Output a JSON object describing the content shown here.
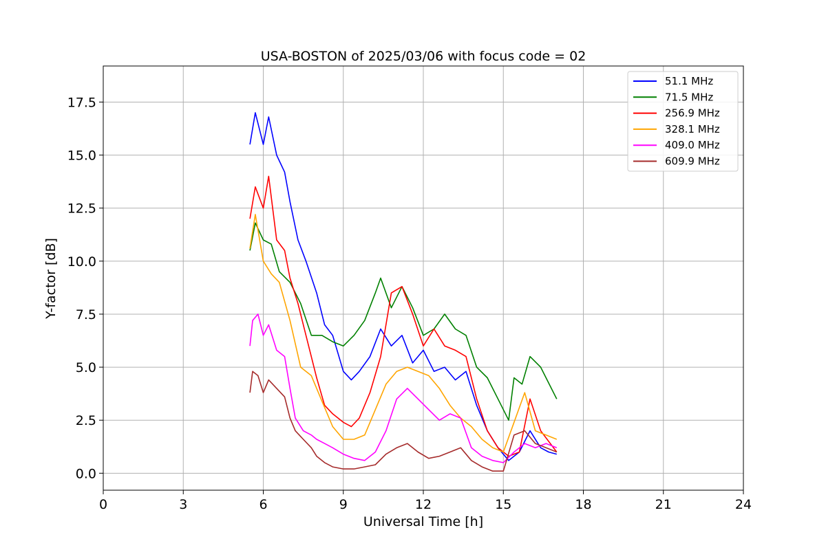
{
  "chart_data": {
    "type": "line",
    "title": "USA-BOSTON of 2025/03/06 with focus code = 02",
    "xlabel": "Universal Time [h]",
    "ylabel": "Y-factor [dB]",
    "xlim": [
      0,
      24
    ],
    "ylim": [
      -0.8,
      19.2
    ],
    "xticks": [
      0,
      3,
      6,
      9,
      12,
      15,
      18,
      21,
      24
    ],
    "xtick_labels": [
      "0",
      "3",
      "6",
      "9",
      "12",
      "15",
      "18",
      "21",
      "24"
    ],
    "yticks": [
      0,
      2.5,
      5,
      7.5,
      10,
      12.5,
      15,
      17.5
    ],
    "ytick_labels": [
      "0.0",
      "2.5",
      "5.0",
      "7.5",
      "10.0",
      "12.5",
      "15.0",
      "17.5"
    ],
    "grid": true,
    "legend_position": "top-right",
    "series": [
      {
        "name": " 51.1 MHz",
        "color": "#0000ff",
        "x": [
          5.5,
          5.7,
          6.0,
          6.2,
          6.5,
          6.8,
          7.0,
          7.3,
          7.6,
          8.0,
          8.3,
          8.6,
          9.0,
          9.3,
          9.6,
          10.0,
          10.4,
          10.8,
          11.2,
          11.6,
          12.0,
          12.4,
          12.8,
          13.2,
          13.6,
          14.0,
          14.4,
          14.8,
          15.2,
          15.6,
          16.0,
          16.4,
          16.7,
          17.0
        ],
        "y": [
          15.5,
          17.0,
          15.5,
          16.8,
          15.0,
          14.2,
          12.8,
          11.0,
          10.0,
          8.5,
          7.0,
          6.5,
          4.8,
          4.4,
          4.8,
          5.5,
          6.8,
          6.0,
          6.5,
          5.2,
          5.8,
          4.8,
          5.0,
          4.4,
          4.8,
          3.2,
          2.0,
          1.2,
          0.6,
          1.0,
          2.0,
          1.2,
          1.0,
          0.9
        ]
      },
      {
        "name": " 71.5 MHz",
        "color": "#008000",
        "x": [
          5.5,
          5.7,
          6.0,
          6.3,
          6.6,
          7.0,
          7.4,
          7.8,
          8.2,
          8.6,
          9.0,
          9.4,
          9.8,
          10.2,
          10.4,
          10.8,
          11.2,
          11.6,
          12.0,
          12.4,
          12.8,
          13.2,
          13.6,
          14.0,
          14.4,
          14.8,
          15.2,
          15.4,
          15.7,
          16.0,
          16.4,
          16.8,
          17.0
        ],
        "y": [
          10.5,
          11.8,
          11.0,
          10.8,
          9.5,
          9.0,
          8.0,
          6.5,
          6.5,
          6.2,
          6.0,
          6.5,
          7.2,
          8.5,
          9.2,
          7.8,
          8.8,
          7.8,
          6.5,
          6.8,
          7.5,
          6.8,
          6.5,
          5.0,
          4.5,
          3.5,
          2.5,
          4.5,
          4.2,
          5.5,
          5.0,
          4.0,
          3.5
        ]
      },
      {
        "name": " 256.9 MHz",
        "color": "#ff0000",
        "x": [
          5.5,
          5.7,
          6.0,
          6.2,
          6.5,
          6.8,
          7.0,
          7.3,
          7.6,
          8.0,
          8.3,
          8.6,
          9.0,
          9.3,
          9.6,
          10.0,
          10.4,
          10.8,
          11.2,
          11.6,
          12.0,
          12.4,
          12.8,
          13.2,
          13.6,
          14.0,
          14.4,
          14.8,
          15.2,
          15.6,
          16.0,
          16.4,
          16.7,
          17.0
        ],
        "y": [
          12.0,
          13.5,
          12.5,
          14.0,
          11.0,
          10.5,
          9.2,
          8.0,
          6.5,
          4.5,
          3.2,
          2.8,
          2.4,
          2.2,
          2.6,
          3.8,
          5.5,
          8.5,
          8.8,
          7.5,
          6.0,
          6.8,
          6.0,
          5.8,
          5.5,
          3.5,
          2.0,
          1.2,
          0.8,
          1.0,
          3.5,
          2.0,
          1.5,
          1.0
        ]
      },
      {
        "name": " 328.1 MHz",
        "color": "#ffa500",
        "x": [
          5.5,
          5.7,
          6.0,
          6.3,
          6.6,
          7.0,
          7.4,
          7.8,
          8.2,
          8.6,
          9.0,
          9.4,
          9.8,
          10.2,
          10.6,
          11.0,
          11.4,
          11.8,
          12.2,
          12.6,
          13.0,
          13.4,
          13.8,
          14.2,
          14.6,
          15.0,
          15.4,
          15.8,
          16.2,
          16.6,
          17.0
        ],
        "y": [
          10.6,
          12.2,
          10.0,
          9.4,
          9.0,
          7.2,
          5.0,
          4.6,
          3.4,
          2.2,
          1.6,
          1.6,
          1.8,
          3.0,
          4.2,
          4.8,
          5.0,
          4.8,
          4.6,
          4.0,
          3.2,
          2.6,
          2.2,
          1.6,
          1.2,
          1.0,
          2.4,
          3.8,
          2.0,
          1.8,
          1.6
        ]
      },
      {
        "name": " 409.0 MHz",
        "color": "#ff00ff",
        "x": [
          5.5,
          5.6,
          5.8,
          6.0,
          6.2,
          6.5,
          6.8,
          7.0,
          7.2,
          7.5,
          7.8,
          8.0,
          8.3,
          8.6,
          9.0,
          9.4,
          9.8,
          10.2,
          10.6,
          11.0,
          11.4,
          11.8,
          12.2,
          12.6,
          13.0,
          13.4,
          13.8,
          14.2,
          14.6,
          15.0,
          15.4,
          15.8,
          16.2,
          16.6,
          17.0
        ],
        "y": [
          6.0,
          7.2,
          7.5,
          6.5,
          7.0,
          5.8,
          5.5,
          4.0,
          2.6,
          2.0,
          1.8,
          1.6,
          1.4,
          1.2,
          0.9,
          0.7,
          0.6,
          1.0,
          2.0,
          3.5,
          4.0,
          3.5,
          3.0,
          2.5,
          2.8,
          2.6,
          1.2,
          0.8,
          0.6,
          0.5,
          1.0,
          1.4,
          1.2,
          1.4,
          1.2
        ]
      },
      {
        "name": " 609.9 MHz",
        "color": "#a52a2a",
        "x": [
          5.5,
          5.6,
          5.8,
          6.0,
          6.2,
          6.5,
          6.8,
          7.0,
          7.2,
          7.5,
          7.8,
          8.0,
          8.3,
          8.6,
          9.0,
          9.4,
          9.8,
          10.2,
          10.6,
          11.0,
          11.4,
          11.8,
          12.2,
          12.6,
          13.0,
          13.4,
          13.8,
          14.2,
          14.6,
          15.0,
          15.4,
          15.8,
          16.2,
          16.6,
          17.0
        ],
        "y": [
          3.8,
          4.8,
          4.6,
          3.8,
          4.4,
          4.0,
          3.6,
          2.6,
          2.0,
          1.6,
          1.2,
          0.8,
          0.5,
          0.3,
          0.2,
          0.2,
          0.3,
          0.4,
          0.9,
          1.2,
          1.4,
          1.0,
          0.7,
          0.8,
          1.0,
          1.2,
          0.6,
          0.3,
          0.1,
          0.1,
          1.8,
          2.0,
          1.4,
          1.2,
          1.0
        ]
      }
    ]
  }
}
